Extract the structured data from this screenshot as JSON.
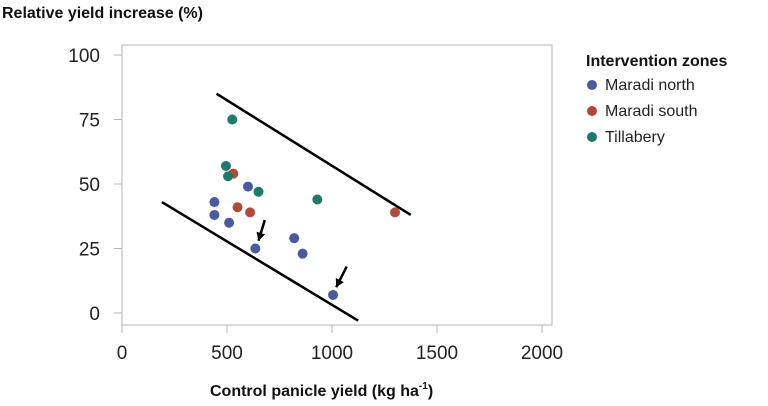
{
  "chart_data": {
    "type": "scatter",
    "ylabel": "Relative yield increase (%)",
    "xlabel_main": "Control panicle yield (kg ha",
    "xlabel_sup": "-1",
    "xlabel_close": ")",
    "xlim": [
      0,
      2000
    ],
    "ylim": [
      0,
      100
    ],
    "x_ticks": [
      0,
      500,
      1000,
      1500,
      2000
    ],
    "y_ticks": [
      0,
      25,
      50,
      75,
      100
    ],
    "legend_title": "Intervention zones",
    "series": [
      {
        "name": "Maradi north",
        "color": "#4a5a9e",
        "points": [
          [
            440,
            43
          ],
          [
            440,
            38
          ],
          [
            510,
            35
          ],
          [
            600,
            49
          ],
          [
            635,
            25
          ],
          [
            820,
            29
          ],
          [
            860,
            23
          ],
          [
            1005,
            7
          ]
        ]
      },
      {
        "name": "Maradi south",
        "color": "#b04a3a",
        "points": [
          [
            530,
            54
          ],
          [
            550,
            41
          ],
          [
            610,
            39
          ],
          [
            1300,
            39
          ]
        ]
      },
      {
        "name": "Tillabery",
        "color": "#1f7a6a",
        "points": [
          [
            525,
            75
          ],
          [
            495,
            57
          ],
          [
            505,
            53
          ],
          [
            650,
            47
          ],
          [
            930,
            44
          ]
        ]
      }
    ],
    "bound_lines": [
      {
        "from": [
          450,
          85
        ],
        "to": [
          1375,
          38
        ]
      },
      {
        "from": [
          190,
          43
        ],
        "to": [
          1125,
          -3
        ]
      }
    ],
    "arrows": [
      {
        "from": [
          680,
          36
        ],
        "to": [
          650,
          28
        ]
      },
      {
        "from": [
          1070,
          18
        ],
        "to": [
          1020,
          10
        ]
      }
    ]
  }
}
